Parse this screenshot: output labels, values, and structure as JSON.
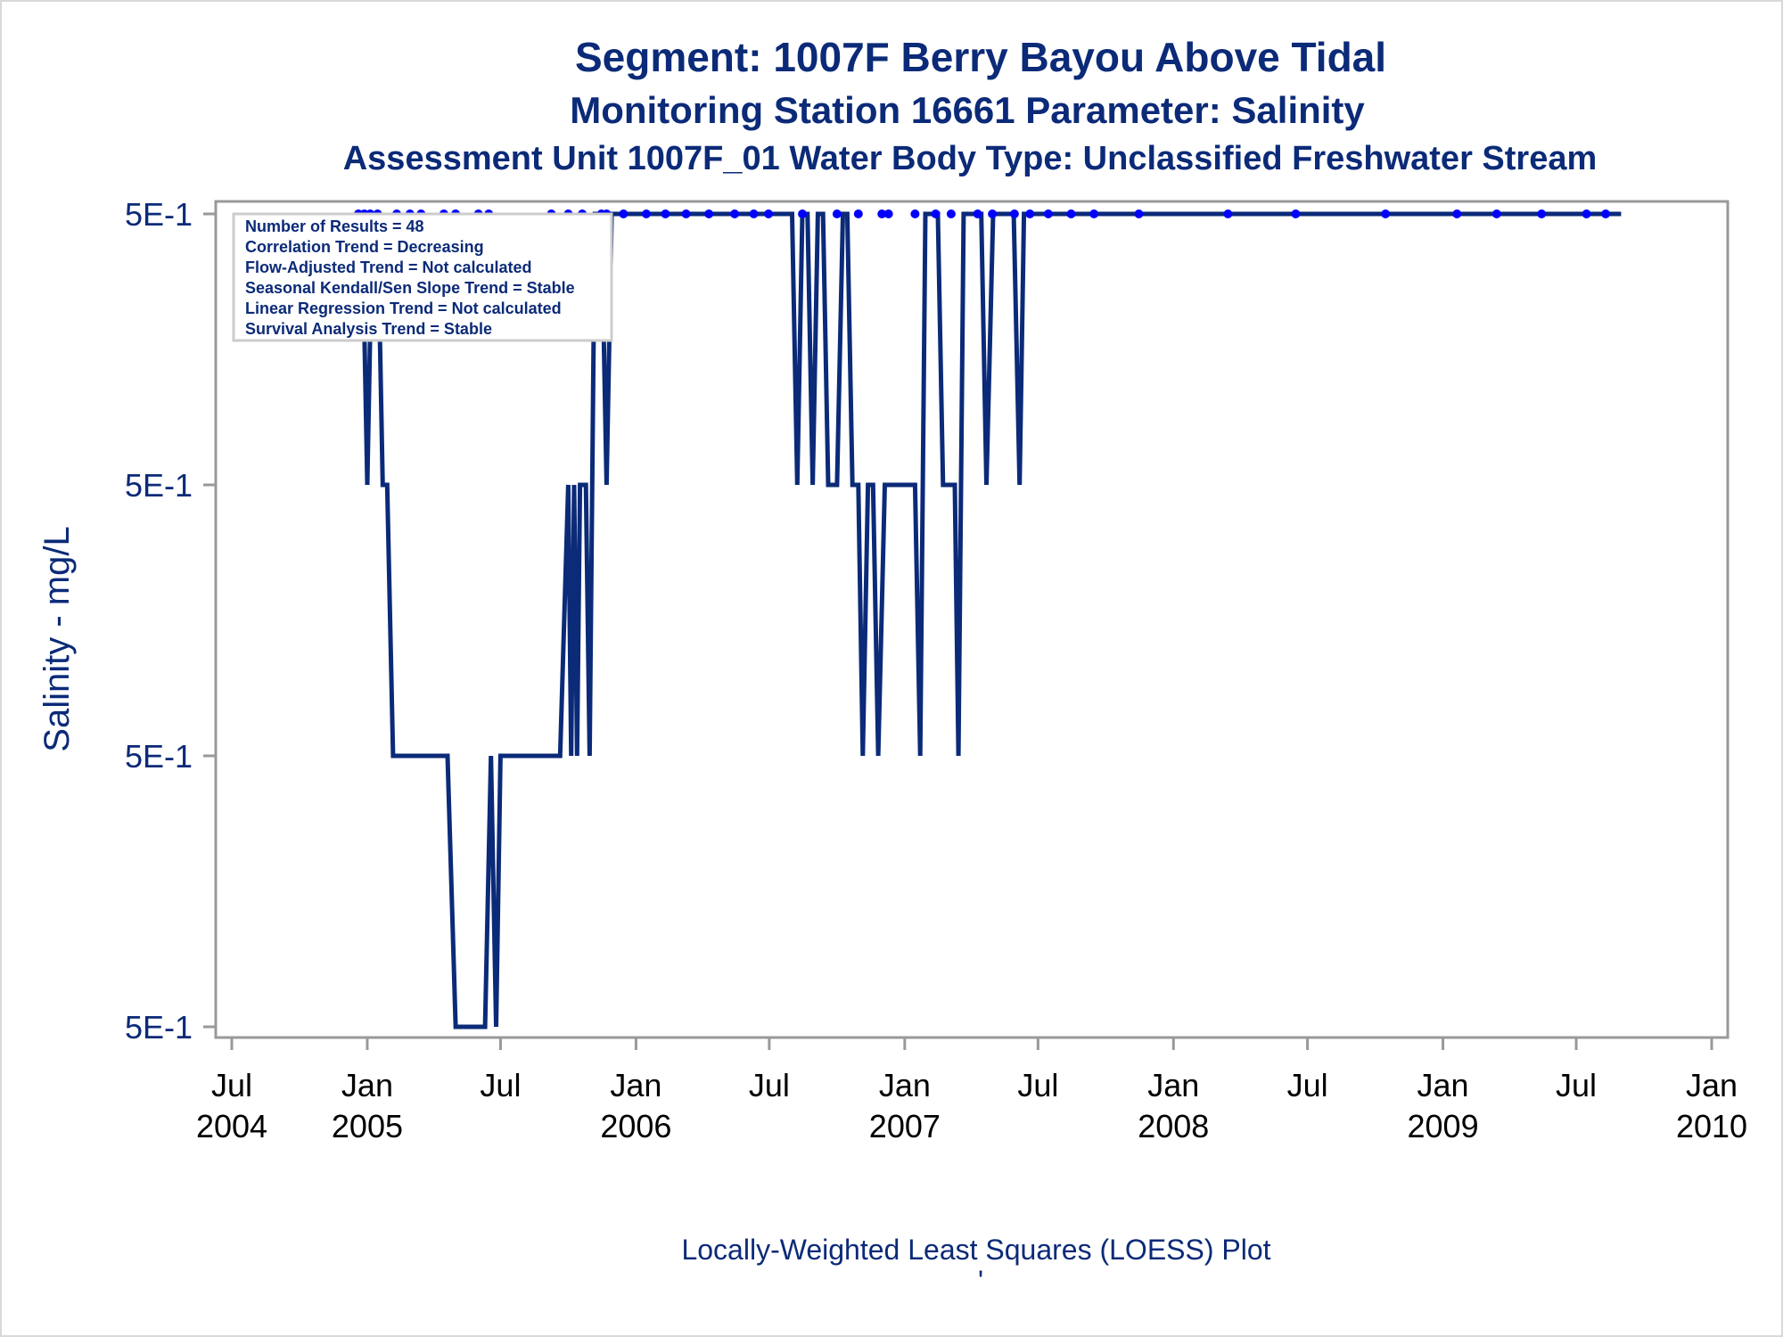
{
  "titles": {
    "line1": "Segment: 1007F  Berry Bayou Above Tidal",
    "line2": "Monitoring Station 16661 Parameter: Salinity",
    "line3": "Assessment Unit 1007F_01   Water Body Type: Unclassified Freshwater Stream"
  },
  "footnote": "Locally-Weighted Least Squares (LOESS) Plot",
  "footnote2": "'",
  "stats_box": [
    "Number of Results = 48",
    "Correlation Trend = Decreasing",
    "Flow-Adjusted Trend = Not calculated",
    "Seasonal Kendall/Sen Slope Trend = Stable",
    "Linear Regression Trend = Not calculated",
    "Survival Analysis Trend = Stable"
  ],
  "colors": {
    "title": "#0b2a78",
    "line": "#0b2a78",
    "points": "#0000ff",
    "axis": "#999999"
  },
  "chart_data": {
    "type": "line",
    "xlabel": "",
    "ylabel": "Salinity - mg/L",
    "y_tick_labels": [
      "5E-1",
      "5E-1",
      "5E-1",
      "5E-1"
    ],
    "y_level_count": 4,
    "x_tick_labels": [
      [
        "Jul",
        "2004"
      ],
      [
        "Jan",
        "2005"
      ],
      [
        "Jul",
        ""
      ],
      [
        "Jan",
        "2006"
      ],
      [
        "Jul",
        ""
      ],
      [
        "Jan",
        "2007"
      ],
      [
        "Jul",
        ""
      ],
      [
        "Jan",
        "2008"
      ],
      [
        "Jul",
        ""
      ],
      [
        "Jan",
        "2009"
      ],
      [
        "Jul",
        ""
      ],
      [
        "Jan",
        "2010"
      ]
    ],
    "x_tick_dates": [
      "2004-07-01",
      "2005-01-01",
      "2005-07-01",
      "2006-01-01",
      "2006-07-01",
      "2007-01-01",
      "2007-07-01",
      "2008-01-01",
      "2008-07-01",
      "2009-01-01",
      "2009-07-01",
      "2010-01-01"
    ],
    "xlim": [
      "2004-07-01",
      "2010-01-01"
    ],
    "grid": false,
    "series": [
      {
        "loess_levels": [
          [
            "2004-12-20",
            3
          ],
          [
            "2004-12-25",
            3
          ],
          [
            "2005-01-01",
            2
          ],
          [
            "2005-01-08",
            3
          ],
          [
            "2005-01-15",
            3
          ],
          [
            "2005-01-22",
            2
          ],
          [
            "2005-01-28",
            2
          ],
          [
            "2005-02-05",
            1
          ],
          [
            "2005-02-25",
            1
          ],
          [
            "2005-03-25",
            1
          ],
          [
            "2005-04-20",
            1
          ],
          [
            "2005-05-01",
            0
          ],
          [
            "2005-06-10",
            0
          ],
          [
            "2005-06-18",
            1
          ],
          [
            "2005-06-25",
            0
          ],
          [
            "2005-07-01",
            1
          ],
          [
            "2005-07-20",
            1
          ],
          [
            "2005-08-20",
            1
          ],
          [
            "2005-09-20",
            1
          ],
          [
            "2005-10-01",
            2
          ],
          [
            "2005-10-05",
            1
          ],
          [
            "2005-10-09",
            2
          ],
          [
            "2005-10-13",
            1
          ],
          [
            "2005-10-17",
            2
          ],
          [
            "2005-10-25",
            2
          ],
          [
            "2005-10-30",
            1
          ],
          [
            "2005-11-06",
            3
          ],
          [
            "2005-11-15",
            3
          ],
          [
            "2005-11-22",
            2
          ],
          [
            "2005-11-29",
            3
          ],
          [
            "2005-12-31",
            3
          ],
          [
            "2006-02-15",
            3
          ],
          [
            "2006-04-01",
            3
          ],
          [
            "2006-05-10",
            3
          ],
          [
            "2006-06-20",
            3
          ],
          [
            "2006-07-15",
            3
          ],
          [
            "2006-08-01",
            3
          ],
          [
            "2006-08-08",
            2
          ],
          [
            "2006-08-15",
            3
          ],
          [
            "2006-08-22",
            3
          ],
          [
            "2006-08-29",
            2
          ],
          [
            "2006-09-05",
            3
          ],
          [
            "2006-09-12",
            3
          ],
          [
            "2006-09-19",
            2
          ],
          [
            "2006-10-01",
            2
          ],
          [
            "2006-10-09",
            3
          ],
          [
            "2006-10-15",
            3
          ],
          [
            "2006-10-22",
            2
          ],
          [
            "2006-10-30",
            2
          ],
          [
            "2006-11-05",
            1
          ],
          [
            "2006-11-12",
            2
          ],
          [
            "2006-11-19",
            2
          ],
          [
            "2006-11-26",
            1
          ],
          [
            "2006-12-05",
            2
          ],
          [
            "2006-12-15",
            2
          ],
          [
            "2007-01-01",
            2
          ],
          [
            "2007-01-15",
            2
          ],
          [
            "2007-01-22",
            1
          ],
          [
            "2007-01-29",
            3
          ],
          [
            "2007-02-15",
            3
          ],
          [
            "2007-02-22",
            2
          ],
          [
            "2007-03-01",
            2
          ],
          [
            "2007-03-10",
            2
          ],
          [
            "2007-03-15",
            1
          ],
          [
            "2007-03-22",
            3
          ],
          [
            "2007-04-15",
            3
          ],
          [
            "2007-04-22",
            2
          ],
          [
            "2007-05-01",
            3
          ],
          [
            "2007-05-15",
            3
          ],
          [
            "2007-05-29",
            3
          ],
          [
            "2007-06-06",
            2
          ],
          [
            "2007-06-12",
            3
          ],
          [
            "2008-01-01",
            3
          ],
          [
            "2009-01-01",
            3
          ],
          [
            "2009-08-31",
            3
          ]
        ],
        "points_level": 3,
        "point_dates": [
          "2004-12-20",
          "2004-12-28",
          "2005-01-05",
          "2005-01-15",
          "2005-02-10",
          "2005-02-28",
          "2005-03-15",
          "2005-04-15",
          "2005-05-01",
          "2005-06-01",
          "2005-06-15",
          "2005-09-08",
          "2005-10-01",
          "2005-10-20",
          "2005-11-15",
          "2005-11-22",
          "2005-12-15",
          "2006-01-15",
          "2006-02-10",
          "2006-03-10",
          "2006-04-10",
          "2006-05-15",
          "2006-06-10",
          "2006-06-30",
          "2006-08-15",
          "2006-10-01",
          "2006-10-30",
          "2006-12-01",
          "2006-12-10",
          "2007-01-15",
          "2007-02-12",
          "2007-03-05",
          "2007-04-10",
          "2007-04-30",
          "2007-05-30",
          "2007-06-20",
          "2007-07-15",
          "2007-08-15",
          "2007-09-15",
          "2007-11-15",
          "2008-03-15",
          "2008-06-15",
          "2008-10-15",
          "2009-01-20",
          "2009-03-15",
          "2009-05-15",
          "2009-07-15",
          "2009-08-10"
        ]
      }
    ]
  }
}
